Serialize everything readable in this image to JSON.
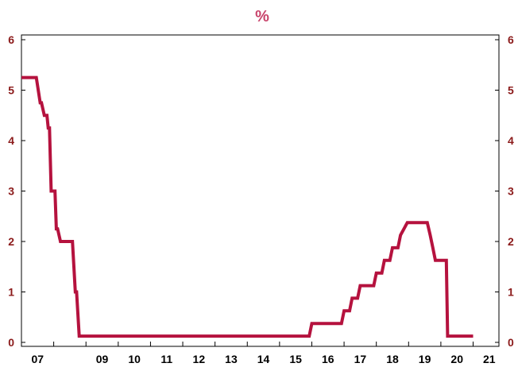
{
  "chart_data": {
    "type": "line",
    "title": "%",
    "xlabel": "",
    "ylabel": "",
    "colors": {
      "series": "#B5123E",
      "title": "#C8446B",
      "tick_label": "#8B1A1A",
      "axis": "#000000"
    },
    "grid": false,
    "legend": "none",
    "xlim": [
      2007.0,
      2021.8
    ],
    "ylim": [
      0,
      6
    ],
    "y_ticks": [
      0,
      1,
      2,
      3,
      4,
      5,
      6
    ],
    "y_tick_labels": [
      "0",
      "1",
      "2",
      "3",
      "4",
      "5",
      "6"
    ],
    "x_tick_labels": [
      {
        "year": 2007,
        "label": "07"
      },
      {
        "year": 2009,
        "label": "09"
      },
      {
        "year": 2010,
        "label": "10"
      },
      {
        "year": 2011,
        "label": "11"
      },
      {
        "year": 2012,
        "label": "12"
      },
      {
        "year": 2013,
        "label": "13"
      },
      {
        "year": 2014,
        "label": "14"
      },
      {
        "year": 2015,
        "label": "15"
      },
      {
        "year": 2016,
        "label": "16"
      },
      {
        "year": 2017,
        "label": "17"
      },
      {
        "year": 2018,
        "label": "18"
      },
      {
        "year": 2019,
        "label": "19"
      },
      {
        "year": 2020,
        "label": "20"
      },
      {
        "year": 2021,
        "label": "21"
      }
    ],
    "series": [
      {
        "x": [
          2007.0,
          2007.46,
          2007.58,
          2007.62,
          2007.71,
          2007.79,
          2007.83,
          2007.87,
          2007.92,
          2008.04,
          2008.08,
          2008.12,
          2008.21,
          2008.29,
          2008.33,
          2008.46,
          2008.5,
          2008.58,
          2008.67,
          2008.71,
          2008.79,
          2008.92,
          2015.92,
          2016.0,
          2016.92,
          2017.0,
          2017.17,
          2017.25,
          2017.42,
          2017.5,
          2017.92,
          2018.0,
          2018.17,
          2018.25,
          2018.42,
          2018.5,
          2018.67,
          2018.75,
          2018.96,
          2019.58,
          2019.67,
          2019.75,
          2019.83,
          2019.92,
          2020.17,
          2020.21,
          2020.25,
          2021.0
        ],
        "y": [
          5.25,
          5.25,
          4.75,
          4.75,
          4.5,
          4.5,
          4.25,
          4.25,
          3.0,
          3.0,
          2.25,
          2.25,
          2.0,
          2.0,
          2.0,
          2.0,
          2.0,
          2.0,
          1.0,
          1.0,
          0.125,
          0.125,
          0.125,
          0.375,
          0.375,
          0.625,
          0.625,
          0.875,
          0.875,
          1.125,
          1.125,
          1.375,
          1.375,
          1.625,
          1.625,
          1.875,
          1.875,
          2.125,
          2.375,
          2.375,
          2.125,
          1.875,
          1.625,
          1.625,
          1.625,
          0.125,
          0.125,
          0.125
        ]
      }
    ]
  }
}
